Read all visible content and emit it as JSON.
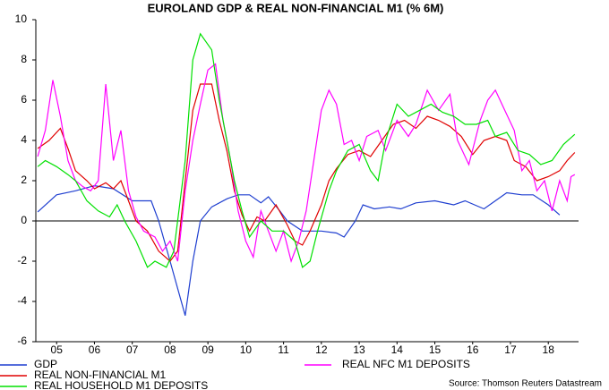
{
  "chart_data": {
    "type": "line",
    "title": "EUROLAND GDP & REAL NON-FINANCIAL M1 (% 6M)",
    "source": "Source: Thomson Reuters Datastream",
    "xlim": [
      2004.95,
      2019.3
    ],
    "xticks": [
      {
        "value": 2005.5,
        "label": "05"
      },
      {
        "value": 2006.5,
        "label": "06"
      },
      {
        "value": 2007.5,
        "label": "07"
      },
      {
        "value": 2008.5,
        "label": "08"
      },
      {
        "value": 2009.5,
        "label": "09"
      },
      {
        "value": 2010.5,
        "label": "10"
      },
      {
        "value": 2011.5,
        "label": "11"
      },
      {
        "value": 2012.5,
        "label": "12"
      },
      {
        "value": 2013.5,
        "label": "13"
      },
      {
        "value": 2014.5,
        "label": "14"
      },
      {
        "value": 2015.5,
        "label": "15"
      },
      {
        "value": 2016.5,
        "label": "16"
      },
      {
        "value": 2017.5,
        "label": "17"
      },
      {
        "value": 2018.5,
        "label": "18"
      }
    ],
    "ylim": [
      -6,
      10
    ],
    "yticks": [
      -6,
      -4,
      -2,
      0,
      2,
      4,
      6,
      8,
      10
    ],
    "zero_line": true,
    "series": [
      {
        "name": "GDP",
        "color": "#1f3fd0",
        "x": [
          2005.0,
          2005.5,
          2006.0,
          2006.5,
          2007.0,
          2007.5,
          2008.0,
          2008.2,
          2008.5,
          2008.9,
          2009.1,
          2009.3,
          2009.6,
          2010.0,
          2010.3,
          2010.6,
          2010.9,
          2011.1,
          2011.4,
          2011.6,
          2012.0,
          2012.5,
          2012.9,
          2013.1,
          2013.4,
          2013.6,
          2013.9,
          2014.3,
          2014.6,
          2015.0,
          2015.5,
          2016.0,
          2016.3,
          2016.8,
          2017.1,
          2017.4,
          2017.8,
          2018.1,
          2018.5,
          2018.8
        ],
        "values": [
          0.45,
          1.3,
          1.5,
          1.75,
          1.6,
          1.0,
          1.0,
          0.0,
          -2.0,
          -4.7,
          -2.0,
          0.0,
          0.7,
          1.1,
          1.3,
          1.3,
          0.9,
          1.2,
          0.5,
          0.0,
          -0.5,
          -0.5,
          -0.6,
          -0.8,
          0.0,
          0.8,
          0.6,
          0.7,
          0.6,
          0.9,
          1.0,
          0.8,
          1.0,
          0.6,
          1.0,
          1.4,
          1.3,
          1.3,
          0.8,
          0.3
        ]
      },
      {
        "name": "REAL NON-FINANCIAL M1",
        "color": "#e00000",
        "x": [
          2005.0,
          2005.3,
          2005.6,
          2005.8,
          2006.0,
          2006.3,
          2006.5,
          2006.8,
          2007.0,
          2007.2,
          2007.4,
          2007.6,
          2007.9,
          2008.2,
          2008.5,
          2008.7,
          2008.9,
          2009.1,
          2009.3,
          2009.6,
          2009.8,
          2010.0,
          2010.2,
          2010.4,
          2010.6,
          2010.8,
          2011.0,
          2011.3,
          2011.6,
          2011.8,
          2012.0,
          2012.2,
          2012.5,
          2012.7,
          2012.9,
          2013.2,
          2013.5,
          2013.8,
          2014.1,
          2014.4,
          2014.7,
          2015.0,
          2015.3,
          2015.6,
          2015.9,
          2016.2,
          2016.5,
          2016.8,
          2017.1,
          2017.4,
          2017.6,
          2017.9,
          2018.2,
          2018.5,
          2018.8,
          2019.0,
          2019.2
        ],
        "values": [
          3.6,
          4.0,
          4.6,
          3.6,
          2.5,
          2.0,
          1.6,
          1.9,
          1.6,
          2.0,
          1.0,
          0.0,
          -0.5,
          -1.5,
          -2.0,
          -1.5,
          2.0,
          5.5,
          6.8,
          6.8,
          5.0,
          3.5,
          1.5,
          0.3,
          -0.5,
          0.2,
          0.0,
          0.8,
          -0.2,
          -1.0,
          -1.2,
          -0.5,
          0.8,
          2.0,
          2.6,
          3.3,
          3.5,
          3.2,
          4.0,
          4.8,
          5.0,
          4.6,
          5.2,
          5.0,
          4.7,
          4.2,
          3.3,
          4.0,
          4.2,
          4.0,
          3.0,
          2.7,
          2.0,
          2.2,
          2.5,
          3.0,
          3.4
        ]
      },
      {
        "name": "REAL NFC M1 DEPOSITS",
        "color": "#ff00ff",
        "x": [
          2005.0,
          2005.2,
          2005.4,
          2005.6,
          2005.8,
          2006.0,
          2006.2,
          2006.4,
          2006.6,
          2006.8,
          2007.0,
          2007.2,
          2007.4,
          2007.6,
          2007.8,
          2008.1,
          2008.3,
          2008.5,
          2008.7,
          2008.9,
          2009.1,
          2009.3,
          2009.5,
          2009.7,
          2009.9,
          2010.1,
          2010.3,
          2010.5,
          2010.7,
          2010.9,
          2011.1,
          2011.3,
          2011.5,
          2011.7,
          2011.9,
          2012.1,
          2012.3,
          2012.5,
          2012.7,
          2012.9,
          2013.1,
          2013.3,
          2013.5,
          2013.7,
          2014.0,
          2014.2,
          2014.5,
          2014.8,
          2015.0,
          2015.3,
          2015.6,
          2015.9,
          2016.1,
          2016.4,
          2016.7,
          2016.9,
          2017.1,
          2017.3,
          2017.6,
          2017.8,
          2018.0,
          2018.2,
          2018.4,
          2018.6,
          2018.8,
          2019.0,
          2019.1,
          2019.2
        ],
        "values": [
          3.2,
          4.5,
          7.0,
          5.2,
          3.0,
          2.0,
          1.7,
          1.5,
          2.0,
          6.8,
          3.0,
          4.5,
          1.5,
          0.2,
          -0.5,
          -0.8,
          -1.5,
          -1.0,
          -2.0,
          1.5,
          4.0,
          5.8,
          7.5,
          7.8,
          5.0,
          3.0,
          0.5,
          -1.0,
          -1.8,
          0.5,
          -0.5,
          -1.5,
          -0.5,
          -2.0,
          -1.0,
          0.5,
          3.0,
          5.5,
          6.5,
          5.8,
          3.8,
          4.0,
          3.0,
          4.2,
          4.5,
          3.5,
          5.0,
          4.2,
          4.8,
          6.5,
          5.5,
          6.3,
          4.0,
          2.8,
          5.0,
          6.0,
          6.5,
          5.7,
          4.5,
          2.5,
          3.0,
          1.5,
          2.0,
          0.5,
          2.0,
          1.0,
          2.2,
          2.3
        ]
      },
      {
        "name": "REAL HOUSEHOLD M1 DEPOSITS",
        "color": "#00e000",
        "x": [
          2005.0,
          2005.2,
          2005.5,
          2005.8,
          2006.0,
          2006.3,
          2006.6,
          2006.9,
          2007.1,
          2007.3,
          2007.6,
          2007.9,
          2008.1,
          2008.4,
          2008.6,
          2008.9,
          2009.1,
          2009.3,
          2009.6,
          2009.8,
          2010.0,
          2010.2,
          2010.4,
          2010.6,
          2010.9,
          2011.2,
          2011.5,
          2011.8,
          2012.0,
          2012.2,
          2012.4,
          2012.7,
          2012.9,
          2013.2,
          2013.5,
          2013.8,
          2014.0,
          2014.2,
          2014.5,
          2014.8,
          2015.1,
          2015.4,
          2015.7,
          2016.0,
          2016.3,
          2016.6,
          2016.9,
          2017.1,
          2017.4,
          2017.7,
          2018.0,
          2018.3,
          2018.6,
          2018.9,
          2019.2
        ],
        "values": [
          2.7,
          3.0,
          2.7,
          2.3,
          2.0,
          1.0,
          0.5,
          0.2,
          0.8,
          0.0,
          -1.0,
          -2.3,
          -2.0,
          -2.3,
          -1.5,
          3.0,
          8.0,
          9.3,
          8.5,
          6.0,
          4.0,
          2.0,
          0.5,
          -0.8,
          0.0,
          -0.5,
          -0.5,
          -1.0,
          -2.3,
          -2.0,
          -0.5,
          1.5,
          2.5,
          3.5,
          3.8,
          2.5,
          2.0,
          4.0,
          5.8,
          5.2,
          5.5,
          5.8,
          5.4,
          5.2,
          4.8,
          4.8,
          5.0,
          4.2,
          4.4,
          3.5,
          3.3,
          2.8,
          3.0,
          3.8,
          4.3
        ]
      }
    ]
  }
}
